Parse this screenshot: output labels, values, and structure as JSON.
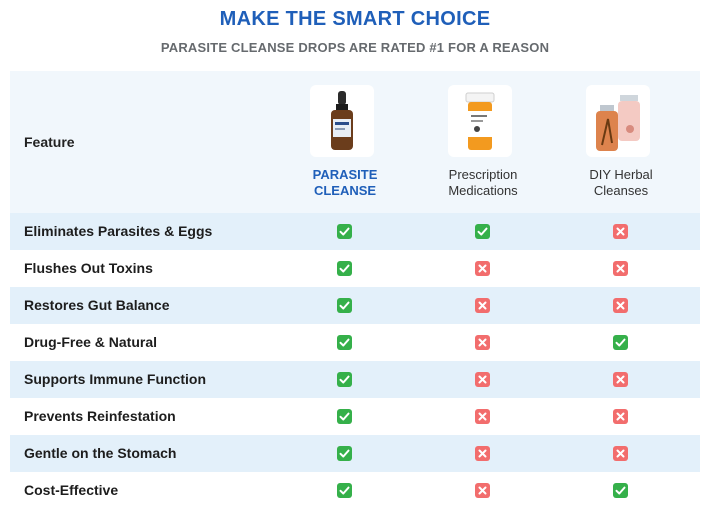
{
  "header": {
    "title": "MAKE THE SMART CHOICE",
    "subtitle": "PARASITE CLEANSE DROPS ARE RATED #1 FOR A REASON"
  },
  "table": {
    "feature_label": "Feature",
    "columns": [
      {
        "line1": "PARASITE",
        "line2": "CLEANSE",
        "icon": "dropper-bottle-icon",
        "highlight": true
      },
      {
        "line1": "Prescription",
        "line2": "Medications",
        "icon": "pill-bottle-icon",
        "highlight": false
      },
      {
        "line1": "DIY Herbal",
        "line2": "Cleanses",
        "icon": "herbal-jars-icon",
        "highlight": false
      }
    ],
    "rows": [
      {
        "feature": "Eliminates Parasites & Eggs",
        "values": [
          true,
          true,
          false
        ]
      },
      {
        "feature": "Flushes Out Toxins",
        "values": [
          true,
          false,
          false
        ]
      },
      {
        "feature": "Restores Gut Balance",
        "values": [
          true,
          false,
          false
        ]
      },
      {
        "feature": "Drug-Free & Natural",
        "values": [
          true,
          false,
          true
        ]
      },
      {
        "feature": "Supports Immune Function",
        "values": [
          true,
          false,
          false
        ]
      },
      {
        "feature": "Prevents Reinfestation",
        "values": [
          true,
          false,
          false
        ]
      },
      {
        "feature": "Gentle on the Stomach",
        "values": [
          true,
          false,
          false
        ]
      },
      {
        "feature": "Cost-Effective",
        "values": [
          true,
          false,
          true
        ]
      }
    ]
  },
  "colors": {
    "accent": "#1f5fb9",
    "check": "#35b04a",
    "cross": "#f26d6d",
    "row_alt": "#e3f0fa"
  }
}
